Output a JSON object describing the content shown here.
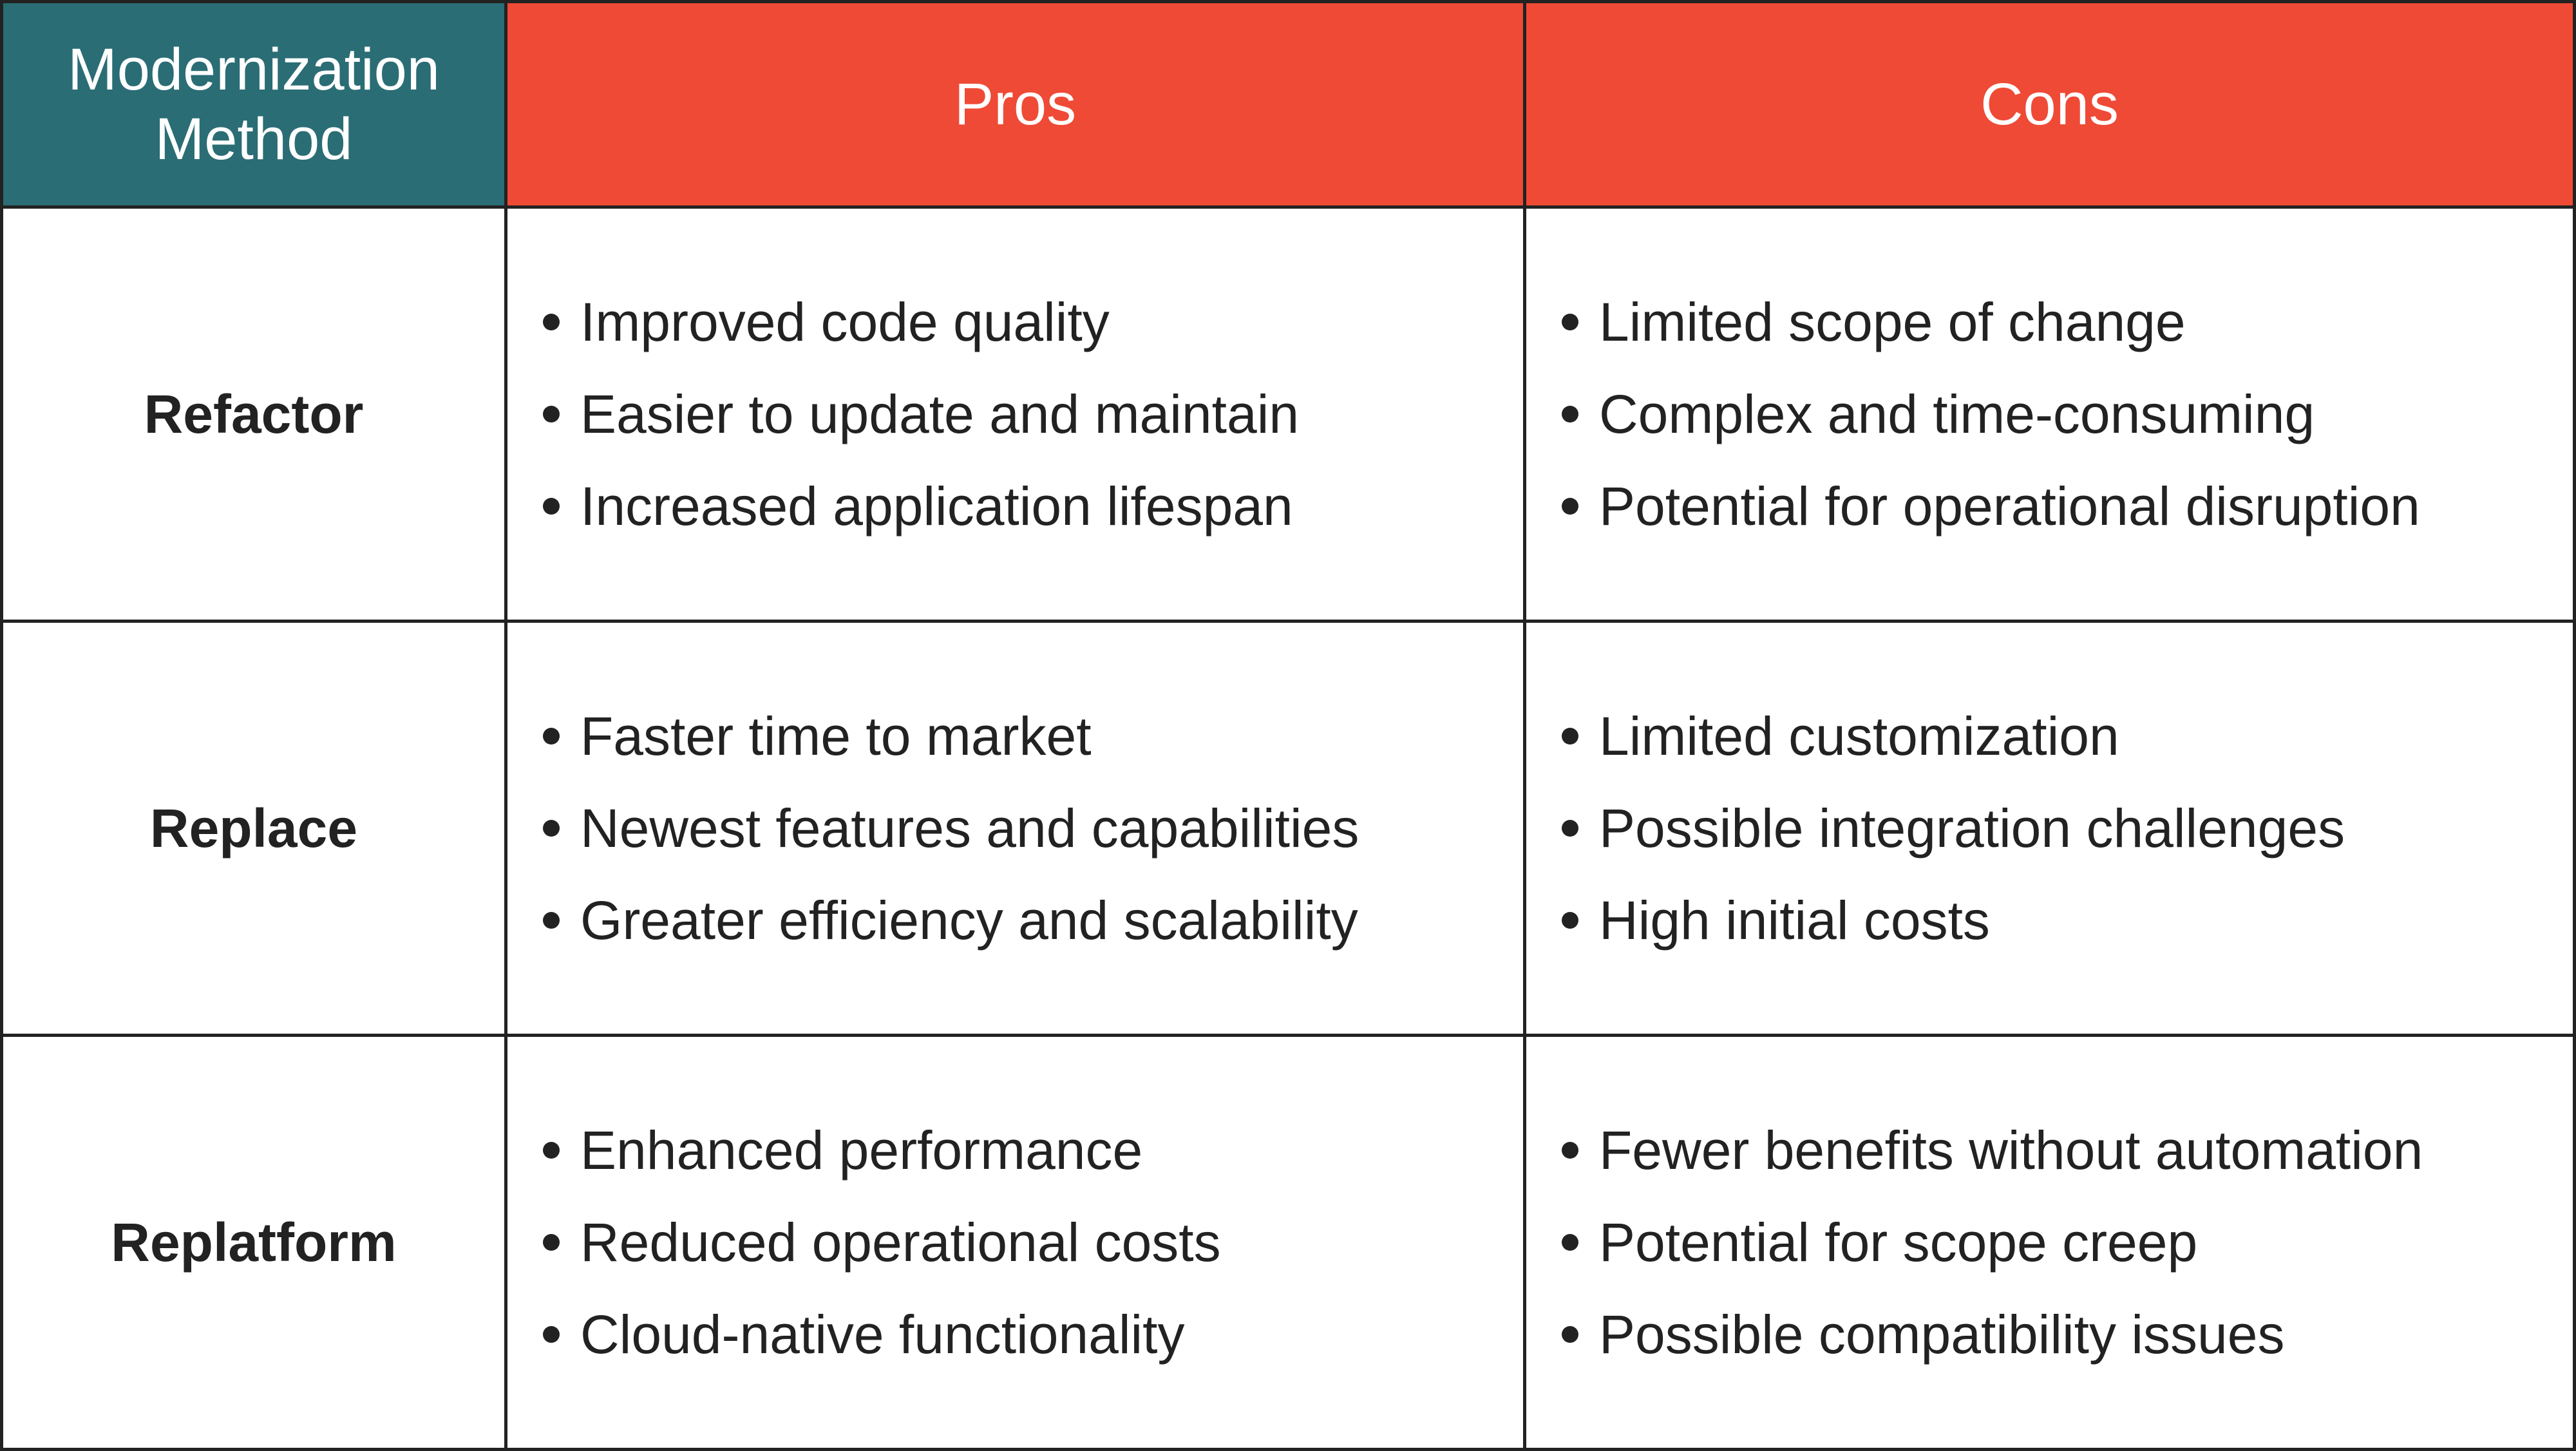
{
  "headers": {
    "method": [
      "Modernization",
      "Method"
    ],
    "pros": "Pros",
    "cons": "Cons"
  },
  "colors": {
    "method_header": "#2a6d75",
    "pros_cons_header": "#ef4a36",
    "text": "#222222"
  },
  "rows": [
    {
      "name": "Refactor",
      "pros": [
        "Improved code quality",
        "Easier to update and maintain",
        "Increased application lifespan"
      ],
      "cons": [
        "Limited scope of change",
        "Complex and time-consuming",
        "Potential for operational disruption"
      ]
    },
    {
      "name": "Replace",
      "pros": [
        "Faster time to market",
        "Newest features and capabilities",
        "Greater efficiency and scalability"
      ],
      "cons": [
        "Limited customization",
        "Possible integration challenges",
        "High initial costs"
      ]
    },
    {
      "name": "Replatform",
      "pros": [
        "Enhanced performance",
        "Reduced operational costs",
        "Cloud-native functionality"
      ],
      "cons": [
        "Fewer benefits without automation",
        "Potential for scope creep",
        "Possible compatibility issues"
      ]
    }
  ]
}
